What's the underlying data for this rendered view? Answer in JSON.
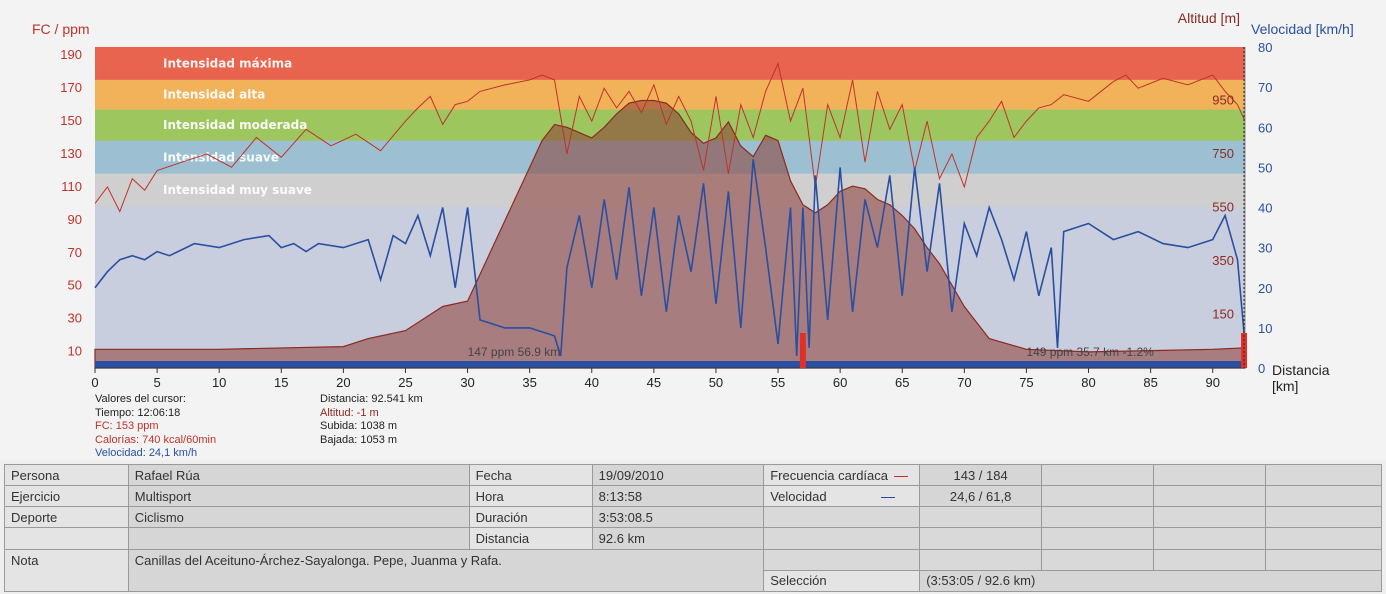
{
  "chart_data": {
    "type": "line",
    "axes": {
      "left_title": "FC / ppm",
      "left_ticks": [
        "190",
        "170",
        "150",
        "130",
        "110",
        "90",
        "70",
        "50",
        "30",
        "10"
      ],
      "right_outer_title": "Velocidad [km/h]",
      "right_outer_ticks": [
        "80",
        "70",
        "60",
        "50",
        "40",
        "30",
        "20",
        "10",
        "0"
      ],
      "right_inner_title": "Altitud [m]",
      "right_inner_ticks": [
        "950",
        "750",
        "550",
        "350",
        "150"
      ],
      "x_title_1": "Distancia",
      "x_title_2": "[km]",
      "x_ticks": [
        "0",
        "5",
        "10",
        "15",
        "20",
        "25",
        "30",
        "35",
        "40",
        "45",
        "50",
        "55",
        "60",
        "65",
        "70",
        "75",
        "80",
        "85",
        "90"
      ],
      "x_range": [
        0,
        92.6
      ],
      "hr_range": [
        0,
        195
      ],
      "speed_range": [
        0,
        80
      ],
      "alt_range": [
        -50,
        1150
      ]
    },
    "zones": [
      {
        "label": "Intensidad máxima",
        "from": 175,
        "to": 195,
        "color": "#e8644f"
      },
      {
        "label": "Intensidad alta",
        "from": 157,
        "to": 175,
        "color": "#f2b25a"
      },
      {
        "label": "Intensidad moderada",
        "from": 138,
        "to": 157,
        "color": "#9ec65f"
      },
      {
        "label": "Intensidad suave",
        "from": 118,
        "to": 138,
        "color": "#9cc0d2"
      },
      {
        "label": "Intensidad muy suave",
        "from": 98,
        "to": 118,
        "color": "#cfcfcf"
      }
    ],
    "series": [
      {
        "key": "altitude",
        "color": "#8b2a22",
        "x": [
          0,
          10,
          20,
          22,
          25,
          27,
          28,
          30,
          33,
          36,
          37,
          38,
          40,
          41,
          42,
          43,
          44,
          45,
          46,
          47,
          48,
          49,
          50,
          51,
          52,
          53,
          54,
          55,
          56,
          57,
          58,
          59,
          60,
          61,
          62,
          63,
          64,
          65,
          66,
          67,
          68,
          70,
          72,
          75,
          80,
          85,
          90,
          92.6
        ],
        "y": [
          20,
          20,
          30,
          60,
          90,
          150,
          180,
          200,
          500,
          800,
          860,
          850,
          810,
          850,
          900,
          940,
          950,
          950,
          940,
          900,
          830,
          790,
          810,
          870,
          780,
          740,
          820,
          800,
          650,
          560,
          530,
          560,
          610,
          630,
          620,
          580,
          560,
          520,
          470,
          400,
          340,
          180,
          60,
          20,
          10,
          15,
          20,
          25
        ]
      },
      {
        "key": "heart_rate",
        "color": "#c0322b",
        "x": [
          0,
          1,
          2,
          3,
          4,
          5,
          7,
          9,
          11,
          13,
          15,
          17,
          19,
          21,
          23,
          25,
          26,
          27,
          28,
          29,
          30,
          31,
          33,
          35,
          36,
          37,
          38,
          39,
          40,
          41,
          42,
          43,
          44,
          45,
          46,
          47,
          48,
          49,
          50,
          51,
          52,
          53,
          54,
          55,
          56,
          57,
          58,
          59,
          60,
          61,
          62,
          63,
          64,
          65,
          66,
          67,
          68,
          69,
          70,
          71,
          72,
          73,
          74,
          75,
          76,
          77,
          78,
          80,
          82,
          83,
          84,
          86,
          88,
          90,
          91,
          92,
          92.6
        ],
        "y": [
          100,
          110,
          95,
          115,
          108,
          120,
          125,
          130,
          122,
          140,
          128,
          145,
          135,
          142,
          132,
          150,
          158,
          165,
          148,
          160,
          162,
          168,
          172,
          175,
          178,
          175,
          130,
          165,
          150,
          170,
          158,
          168,
          155,
          172,
          148,
          165,
          150,
          120,
          165,
          118,
          160,
          140,
          168,
          185,
          150,
          170,
          110,
          160,
          140,
          175,
          125,
          168,
          145,
          160,
          120,
          150,
          115,
          130,
          110,
          140,
          150,
          162,
          140,
          150,
          158,
          160,
          166,
          162,
          174,
          178,
          170,
          176,
          172,
          178,
          168,
          160,
          150
        ]
      },
      {
        "key": "speed",
        "color": "#2a4fa0",
        "x": [
          0,
          1,
          2,
          3,
          4,
          5,
          6,
          8,
          10,
          12,
          14,
          15,
          16,
          17,
          18,
          20,
          22,
          23,
          24,
          25,
          26,
          27,
          28,
          29,
          30,
          31,
          33,
          35,
          37,
          37.5,
          38,
          39,
          40,
          41,
          42,
          43,
          44,
          45,
          46,
          47,
          48,
          49,
          50,
          51,
          52,
          53,
          54,
          55,
          56,
          56.5,
          57,
          57.5,
          58,
          59,
          60,
          61,
          62,
          63,
          64,
          65,
          66,
          67,
          68,
          69,
          70,
          71,
          72,
          73,
          74,
          75,
          76,
          77,
          77.5,
          78,
          80,
          82,
          84,
          86,
          88,
          90,
          91,
          92,
          92.6
        ],
        "y": [
          20,
          24,
          27,
          28,
          27,
          29,
          28,
          31,
          30,
          32,
          33,
          30,
          31,
          29,
          31,
          30,
          32,
          22,
          33,
          31,
          38,
          28,
          40,
          20,
          40,
          12,
          10,
          10,
          8,
          3,
          25,
          38,
          20,
          42,
          22,
          45,
          18,
          40,
          14,
          38,
          24,
          46,
          16,
          44,
          10,
          52,
          30,
          6,
          40,
          3,
          40,
          5,
          48,
          12,
          50,
          14,
          42,
          30,
          48,
          18,
          50,
          24,
          46,
          14,
          36,
          28,
          40,
          32,
          22,
          34,
          18,
          30,
          5,
          34,
          36,
          32,
          34,
          31,
          30,
          32,
          38,
          27,
          6
        ]
      }
    ],
    "markers": [
      {
        "text": "147 ppm 56.9 km",
        "x": 30
      },
      {
        "text": "149 ppm 35.7 km -1.2%",
        "x": 75
      }
    ]
  },
  "cursor": {
    "title": "Valores del cursor:",
    "time": "Tiempo: 12:06:18",
    "hr": "FC: 153 ppm",
    "calories": "Calorías: 740 kcal/60min",
    "speed": "Velocidad: 24,1 km/h",
    "distance": "Distancia: 92.541 km",
    "altitude": "Altitud: -1 m",
    "ascent": "Subida: 1038 m",
    "descent": "Bajada: 1053 m"
  },
  "info": {
    "persona_label": "Persona",
    "persona": "Rafael Rúa",
    "ejercicio_label": "Ejercicio",
    "ejercicio": "Multisport",
    "deporte_label": "Deporte",
    "deporte": "Ciclismo",
    "nota_label": "Nota",
    "nota": "Canillas del Aceituno-Árchez-Sayalonga. Pepe, Juanma y Rafa.",
    "fecha_label": "Fecha",
    "fecha": "19/09/2010",
    "hora_label": "Hora",
    "hora": "8:13:58",
    "duracion_label": "Duración",
    "duracion": "3:53:08.5",
    "distancia_label": "Distancia",
    "distancia": "92.6 km",
    "fc_label": "Frecuencia cardíaca",
    "fc": "143 / 184",
    "vel_label": "Velocidad",
    "vel": "24,6 / 61,8",
    "seleccion_label": "Selección",
    "seleccion": "(3:53:05 / 92.6 km)"
  },
  "colors": {
    "hr": "#c0322b",
    "speed": "#2a4fa0",
    "altitude": "#8b2a22"
  }
}
